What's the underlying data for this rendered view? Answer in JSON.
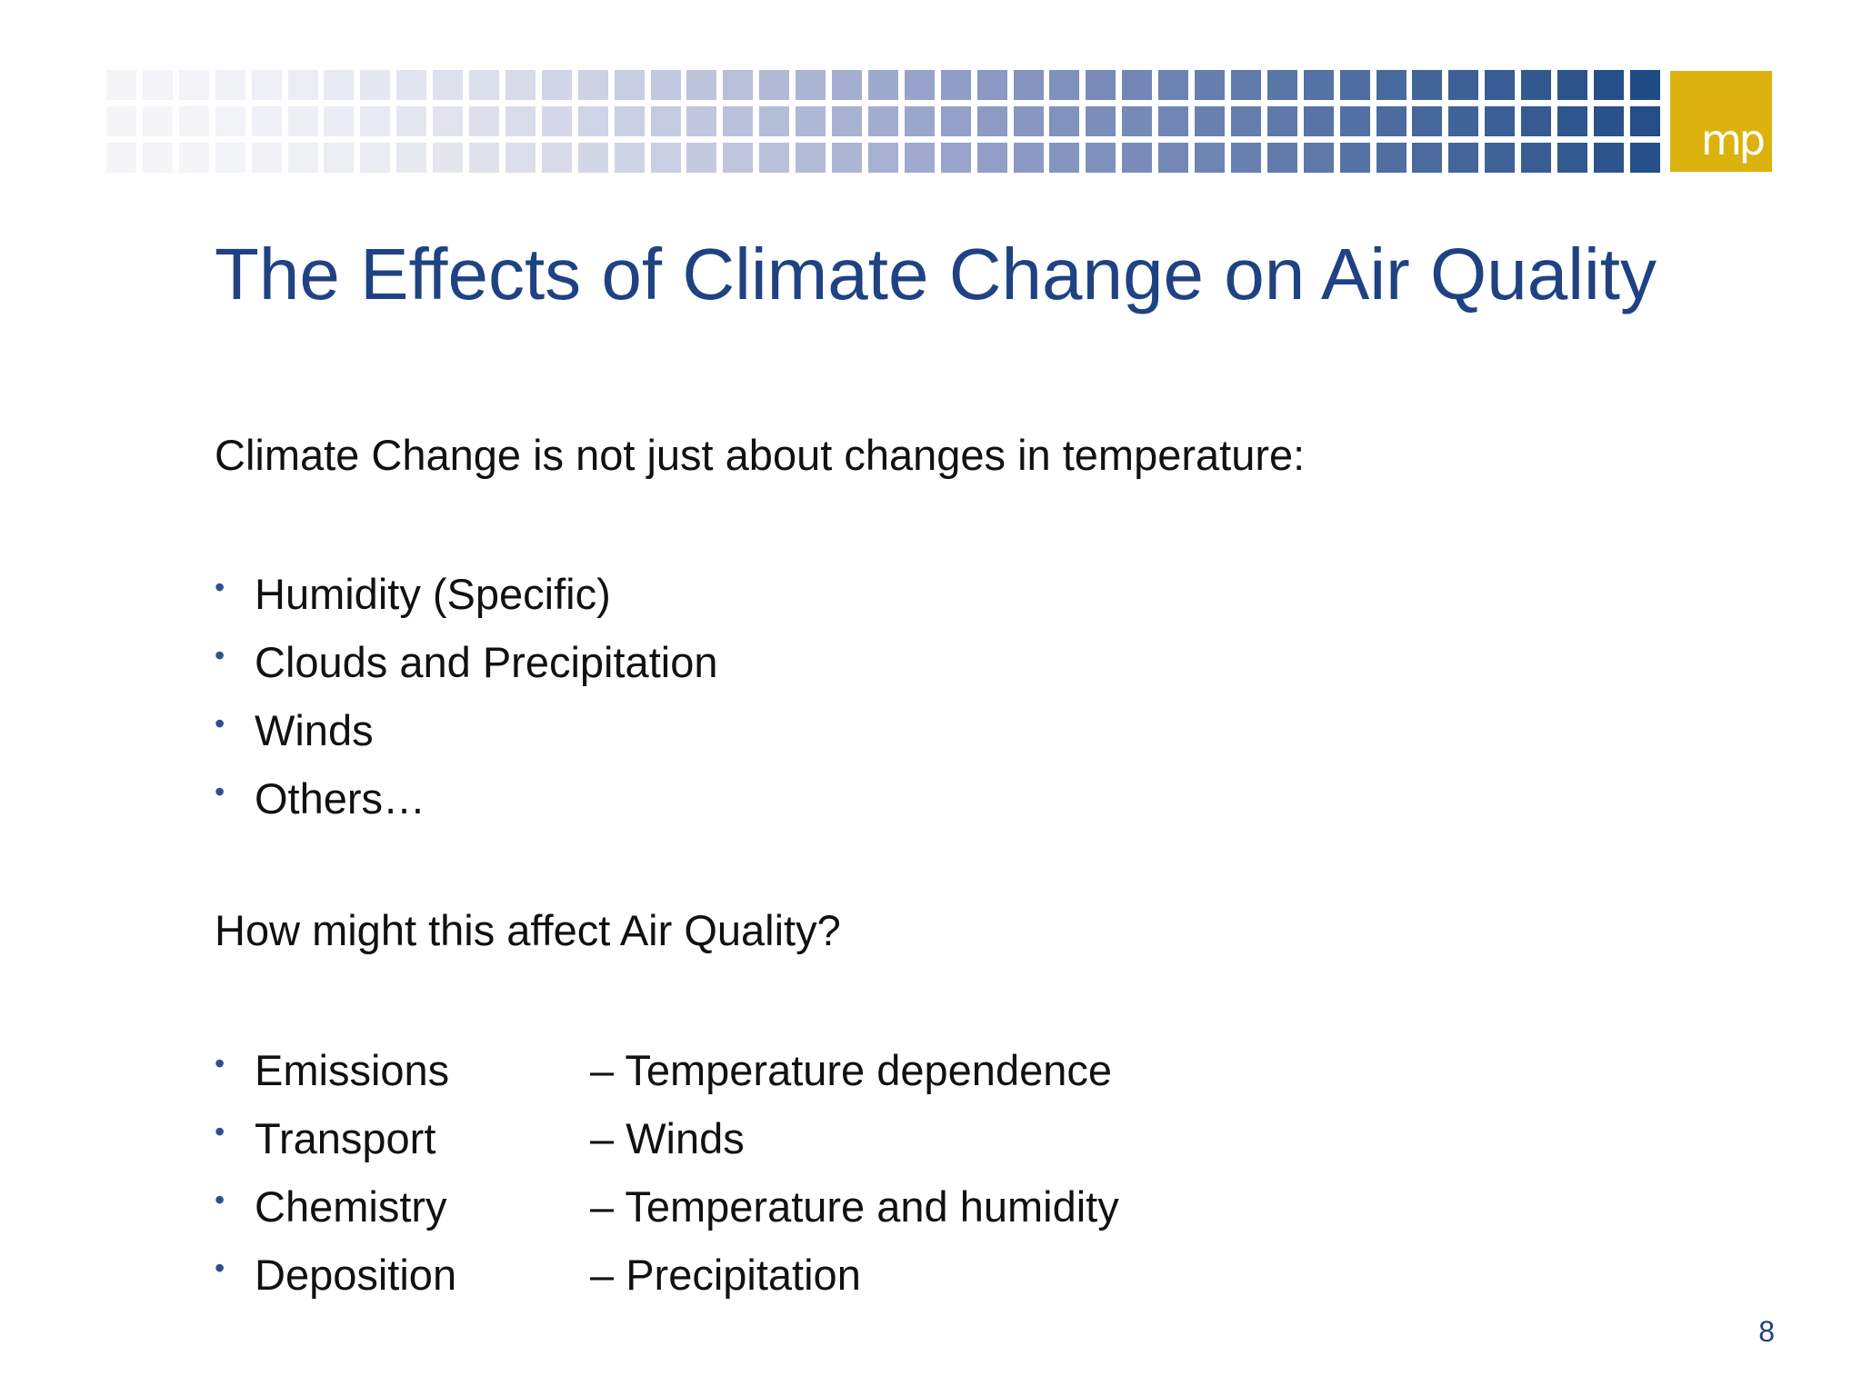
{
  "header": {
    "logo_text": "mp",
    "colors": {
      "tile_light": "#f5f5f8",
      "tile_mid": "#8f9cc6",
      "tile_dark": "#1f4b85",
      "logo_bg": "#dcb30e"
    }
  },
  "title": "The Effects of Climate Change on Air Quality",
  "intro": "Climate Change is not just about changes in temperature:",
  "climate_factors": [
    "Humidity (Specific)",
    "Clouds and Precipitation",
    "Winds",
    "Others…"
  ],
  "question": "How might this affect Air Quality?",
  "impacts": [
    {
      "label": "Emissions",
      "desc": "– Temperature dependence"
    },
    {
      "label": "Transport",
      "desc": "– Winds"
    },
    {
      "label": "Chemistry",
      "desc": "– Temperature and humidity"
    },
    {
      "label": "Deposition",
      "desc": "– Precipitation"
    }
  ],
  "bullet_char": "•",
  "page_number": "8"
}
